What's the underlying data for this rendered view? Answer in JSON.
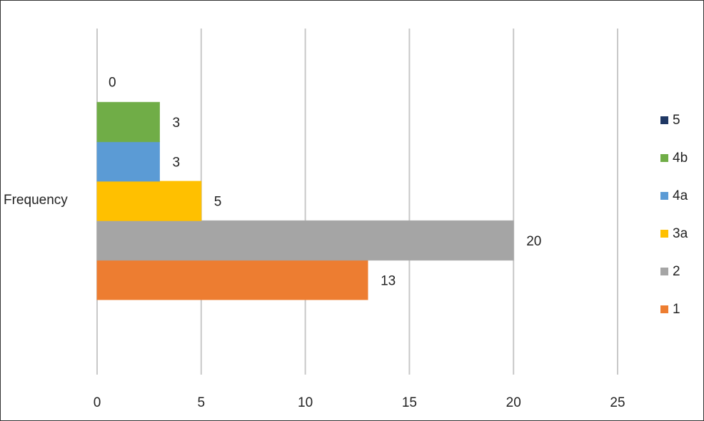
{
  "chart_data": {
    "type": "bar",
    "orientation": "horizontal",
    "categories": [
      "Frequency"
    ],
    "series": [
      {
        "name": "1",
        "color": "#ed7d31",
        "values": [
          13
        ]
      },
      {
        "name": "2",
        "color": "#a5a5a5",
        "values": [
          20
        ]
      },
      {
        "name": "3a",
        "color": "#ffc000",
        "values": [
          5
        ]
      },
      {
        "name": "4a",
        "color": "#5b9bd5",
        "values": [
          3
        ]
      },
      {
        "name": "4b",
        "color": "#70ad47",
        "values": [
          3
        ]
      },
      {
        "name": "5",
        "color": "#1f3864",
        "values": [
          0
        ]
      }
    ],
    "xlim": [
      0,
      25
    ],
    "xticks": [
      0,
      5,
      10,
      15,
      20,
      25
    ],
    "grid": true,
    "legend": "right"
  }
}
